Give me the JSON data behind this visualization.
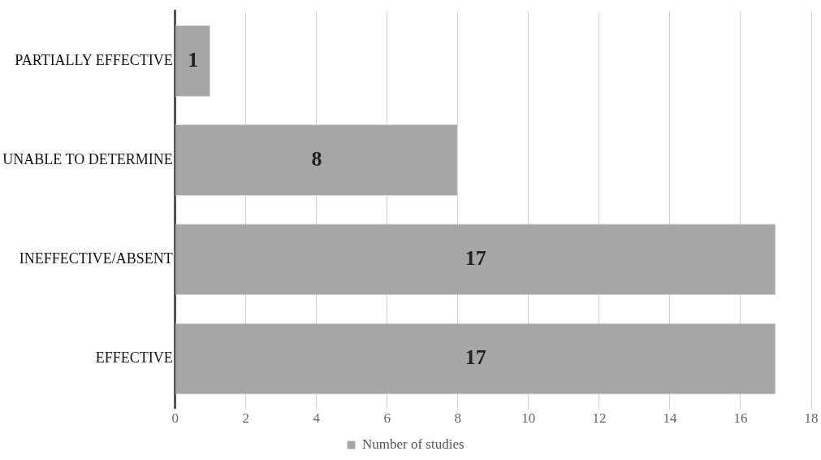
{
  "chart_data": {
    "type": "bar",
    "orientation": "horizontal",
    "categories": [
      "PARTIALLY EFFECTIVE",
      "UNABLE TO DETERMINE",
      "INEFFECTIVE/ABSENT",
      "EFFECTIVE"
    ],
    "series": [
      {
        "name": "Number of studies",
        "color": "#a6a6a6",
        "values": [
          1,
          8,
          17,
          17
        ]
      }
    ],
    "xlim": [
      0,
      18
    ],
    "xticks": [
      0,
      2,
      4,
      6,
      8,
      10,
      12,
      14,
      16,
      18
    ],
    "grid": "x",
    "legend": "bottom",
    "data_labels": true
  }
}
